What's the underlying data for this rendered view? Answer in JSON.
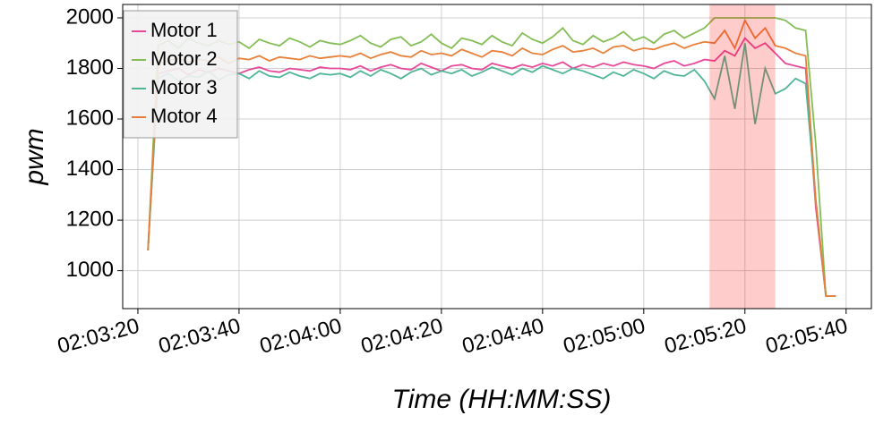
{
  "chart_data": {
    "type": "line",
    "xlabel": "Time (HH:MM:SS)",
    "ylabel": "pwm",
    "x": [
      "02:03:22",
      "02:03:24",
      "02:03:26",
      "02:03:28",
      "02:03:30",
      "02:03:32",
      "02:03:34",
      "02:03:36",
      "02:03:38",
      "02:03:40",
      "02:03:42",
      "02:03:44",
      "02:03:46",
      "02:03:48",
      "02:03:50",
      "02:03:52",
      "02:03:54",
      "02:03:56",
      "02:03:58",
      "02:04:00",
      "02:04:02",
      "02:04:04",
      "02:04:06",
      "02:04:08",
      "02:04:10",
      "02:04:12",
      "02:04:14",
      "02:04:16",
      "02:04:18",
      "02:04:20",
      "02:04:22",
      "02:04:24",
      "02:04:26",
      "02:04:28",
      "02:04:30",
      "02:04:32",
      "02:04:34",
      "02:04:36",
      "02:04:38",
      "02:04:40",
      "02:04:42",
      "02:04:44",
      "02:04:46",
      "02:04:48",
      "02:04:50",
      "02:04:52",
      "02:04:54",
      "02:04:56",
      "02:04:58",
      "02:05:00",
      "02:05:02",
      "02:05:04",
      "02:05:06",
      "02:05:08",
      "02:05:10",
      "02:05:12",
      "02:05:14",
      "02:05:16",
      "02:05:18",
      "02:05:20",
      "02:05:22",
      "02:05:24",
      "02:05:26",
      "02:05:28",
      "02:05:30",
      "02:05:32",
      "02:05:34",
      "02:05:36",
      "02:05:38"
    ],
    "series": [
      {
        "name": "Motor 1",
        "color": "#e8489a",
        "values": [
          1080,
          1780,
          1790,
          1800,
          1775,
          1795,
          1785,
          1800,
          1790,
          1780,
          1795,
          1805,
          1790,
          1785,
          1800,
          1795,
          1790,
          1805,
          1800,
          1800,
          1795,
          1810,
          1790,
          1805,
          1815,
          1800,
          1795,
          1820,
          1805,
          1790,
          1810,
          1815,
          1800,
          1795,
          1820,
          1810,
          1800,
          1815,
          1805,
          1820,
          1810,
          1825,
          1800,
          1815,
          1805,
          1820,
          1810,
          1825,
          1815,
          1810,
          1800,
          1820,
          1830,
          1810,
          1820,
          1835,
          1830,
          1870,
          1850,
          1920,
          1880,
          1900,
          1860,
          1820,
          1810,
          1800,
          1250,
          900,
          900
        ]
      },
      {
        "name": "Motor 2",
        "color": "#84bd55",
        "values": [
          1080,
          1890,
          1910,
          1880,
          1920,
          1900,
          1890,
          1910,
          1895,
          1905,
          1880,
          1915,
          1900,
          1890,
          1920,
          1905,
          1885,
          1910,
          1900,
          1895,
          1910,
          1930,
          1900,
          1885,
          1915,
          1925,
          1890,
          1905,
          1935,
          1900,
          1880,
          1920,
          1910,
          1895,
          1930,
          1905,
          1890,
          1940,
          1915,
          1900,
          1925,
          1960,
          1910,
          1895,
          1930,
          1905,
          1920,
          1945,
          1910,
          1925,
          1900,
          1935,
          1950,
          1920,
          1940,
          1960,
          2000,
          2000,
          2000,
          2000,
          2000,
          2000,
          2000,
          1990,
          1960,
          1950,
          1500,
          900,
          900
        ]
      },
      {
        "name": "Motor 3",
        "color": "#4fb596",
        "values": [
          1080,
          1760,
          1780,
          1750,
          1770,
          1765,
          1790,
          1755,
          1775,
          1780,
          1760,
          1790,
          1770,
          1765,
          1785,
          1770,
          1760,
          1780,
          1775,
          1780,
          1765,
          1790,
          1770,
          1795,
          1780,
          1760,
          1785,
          1800,
          1775,
          1790,
          1780,
          1795,
          1770,
          1785,
          1805,
          1790,
          1775,
          1800,
          1785,
          1810,
          1795,
          1780,
          1800,
          1790,
          1775,
          1760,
          1785,
          1770,
          1795,
          1780,
          1760,
          1790,
          1775,
          1770,
          1795,
          1750,
          1680,
          1850,
          1640,
          1900,
          1580,
          1800,
          1700,
          1720,
          1760,
          1740,
          1280,
          900,
          900
        ]
      },
      {
        "name": "Motor 4",
        "color": "#e8803a",
        "values": [
          1080,
          1820,
          1830,
          1840,
          1825,
          1835,
          1830,
          1845,
          1820,
          1840,
          1835,
          1850,
          1830,
          1845,
          1840,
          1835,
          1850,
          1840,
          1845,
          1850,
          1845,
          1860,
          1840,
          1855,
          1865,
          1850,
          1845,
          1870,
          1855,
          1860,
          1850,
          1875,
          1860,
          1845,
          1870,
          1865,
          1850,
          1880,
          1860,
          1855,
          1875,
          1890,
          1865,
          1870,
          1880,
          1860,
          1885,
          1890,
          1870,
          1880,
          1875,
          1890,
          1900,
          1880,
          1895,
          1905,
          1900,
          1950,
          1880,
          1990,
          1920,
          1960,
          1890,
          1880,
          1860,
          1850,
          1280,
          900,
          900
        ]
      }
    ],
    "xlim": [
      "02:03:17",
      "02:05:45"
    ],
    "xticks": [
      "02:03:20",
      "02:03:40",
      "02:04:00",
      "02:04:20",
      "02:04:40",
      "02:05:00",
      "02:05:20",
      "02:05:40"
    ],
    "ylim": [
      850,
      2053
    ],
    "yticks": [
      1000,
      1200,
      1400,
      1600,
      1800,
      2000
    ],
    "grid": true,
    "legend": "upper left",
    "highlight": [
      "02:05:13",
      "02:05:26"
    ],
    "highlight_color": "#ff0000"
  }
}
